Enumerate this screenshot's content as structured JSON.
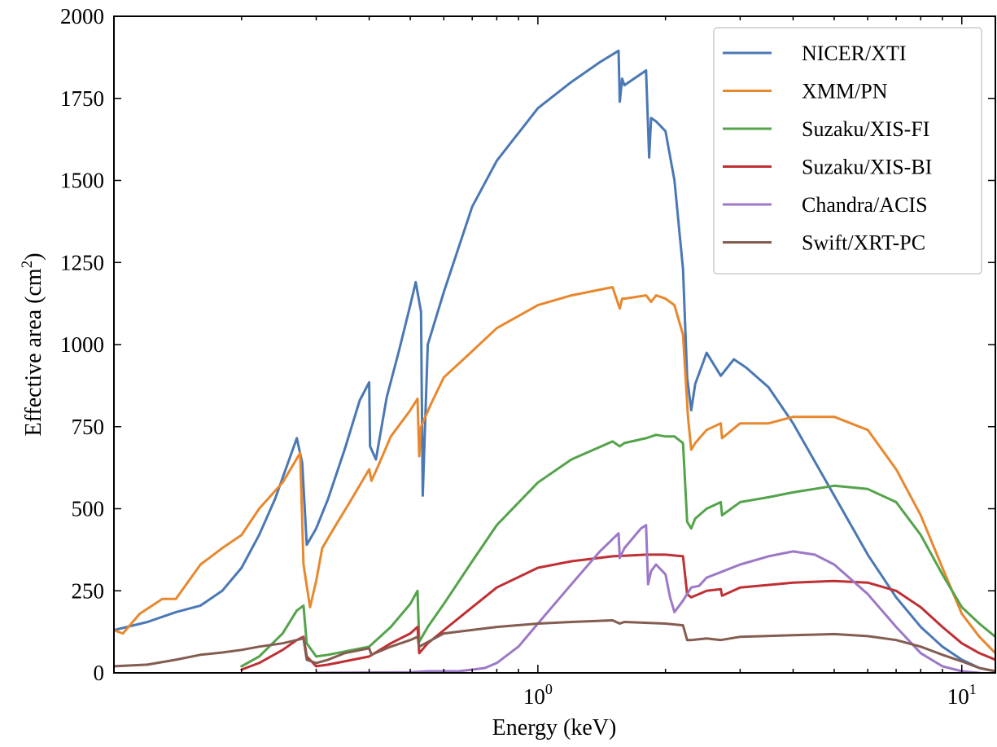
{
  "chart_data": {
    "type": "line",
    "xlabel": "Energy (keV)",
    "ylabel": "Effective area (cm",
    "ylabel_superscript": "2",
    "ylabel_close": ")",
    "xscale": "log",
    "xlim": [
      0.1,
      12
    ],
    "ylim": [
      0,
      2000
    ],
    "grid": false,
    "legend_position": "top-right",
    "y_ticks": [
      {
        "value": 0,
        "label": "0"
      },
      {
        "value": 250,
        "label": "250"
      },
      {
        "value": 500,
        "label": "500"
      },
      {
        "value": 750,
        "label": "750"
      },
      {
        "value": 1000,
        "label": "1000"
      },
      {
        "value": 1250,
        "label": "1250"
      },
      {
        "value": 1500,
        "label": "1500"
      },
      {
        "value": 1750,
        "label": "1750"
      },
      {
        "value": 2000,
        "label": "2000"
      }
    ],
    "x_ticks": [
      {
        "value": 1,
        "base": "10",
        "exp": "0"
      },
      {
        "value": 10,
        "base": "10",
        "exp": "1"
      }
    ],
    "series": [
      {
        "name": "NICER/XTI",
        "color": "#4a78b4",
        "x": [
          0.1,
          0.12,
          0.14,
          0.16,
          0.18,
          0.2,
          0.22,
          0.24,
          0.27,
          0.278,
          0.285,
          0.3,
          0.32,
          0.35,
          0.38,
          0.4,
          0.402,
          0.415,
          0.44,
          0.47,
          0.5,
          0.515,
          0.53,
          0.535,
          0.55,
          0.6,
          0.7,
          0.8,
          1.0,
          1.2,
          1.4,
          1.55,
          1.56,
          1.58,
          1.6,
          1.8,
          1.83,
          1.85,
          1.9,
          2.0,
          2.1,
          2.2,
          2.25,
          2.3,
          2.35,
          2.5,
          2.7,
          2.9,
          3.1,
          3.5,
          4.0,
          5.0,
          6.0,
          7.0,
          8.0,
          9.0,
          10.0,
          11.0,
          12.0
        ],
        "y": [
          130,
          155,
          185,
          205,
          250,
          320,
          420,
          530,
          715,
          640,
          390,
          440,
          530,
          680,
          830,
          885,
          690,
          650,
          840,
          980,
          1120,
          1190,
          1100,
          540,
          1000,
          1160,
          1420,
          1560,
          1720,
          1800,
          1860,
          1895,
          1740,
          1810,
          1790,
          1835,
          1570,
          1690,
          1680,
          1650,
          1500,
          1230,
          900,
          800,
          880,
          975,
          905,
          955,
          930,
          870,
          760,
          540,
          360,
          230,
          140,
          80,
          40,
          15,
          5
        ]
      },
      {
        "name": "XMM/PN",
        "color": "#e8882e",
        "x": [
          0.1,
          0.105,
          0.115,
          0.13,
          0.14,
          0.16,
          0.18,
          0.2,
          0.22,
          0.25,
          0.275,
          0.28,
          0.29,
          0.3,
          0.31,
          0.33,
          0.36,
          0.4,
          0.405,
          0.42,
          0.45,
          0.5,
          0.52,
          0.525,
          0.53,
          0.56,
          0.6,
          0.7,
          0.8,
          1.0,
          1.2,
          1.5,
          1.56,
          1.58,
          1.6,
          1.8,
          1.85,
          1.9,
          2.0,
          2.1,
          2.2,
          2.26,
          2.3,
          2.35,
          2.5,
          2.7,
          2.72,
          3.0,
          3.5,
          4.0,
          5.0,
          6.0,
          7.0,
          8.0,
          9.0,
          10.0,
          11.0,
          12.0
        ],
        "y": [
          130,
          120,
          180,
          225,
          225,
          330,
          380,
          420,
          500,
          580,
          670,
          330,
          200,
          280,
          380,
          440,
          520,
          620,
          585,
          630,
          720,
          800,
          835,
          660,
          750,
          820,
          900,
          980,
          1050,
          1120,
          1150,
          1175,
          1110,
          1140,
          1140,
          1150,
          1130,
          1150,
          1140,
          1120,
          1030,
          780,
          680,
          700,
          740,
          760,
          715,
          760,
          760,
          780,
          780,
          740,
          620,
          480,
          320,
          180,
          110,
          60
        ]
      },
      {
        "name": "Suzaku/XIS-FI",
        "color": "#54a34b",
        "x": [
          0.2,
          0.22,
          0.25,
          0.27,
          0.28,
          0.285,
          0.3,
          0.32,
          0.35,
          0.4,
          0.45,
          0.5,
          0.52,
          0.525,
          0.55,
          0.6,
          0.7,
          0.8,
          1.0,
          1.2,
          1.5,
          1.56,
          1.6,
          1.8,
          1.9,
          2.0,
          2.1,
          2.2,
          2.25,
          2.3,
          2.35,
          2.5,
          2.7,
          2.72,
          3.0,
          3.5,
          4.0,
          5.0,
          6.0,
          7.0,
          8.0,
          9.0,
          10.0,
          11.0,
          12.0
        ],
        "y": [
          20,
          50,
          120,
          190,
          205,
          90,
          50,
          55,
          65,
          80,
          140,
          210,
          250,
          95,
          140,
          210,
          340,
          450,
          580,
          650,
          705,
          690,
          700,
          715,
          725,
          720,
          720,
          700,
          460,
          440,
          470,
          500,
          520,
          480,
          520,
          535,
          550,
          570,
          560,
          520,
          420,
          300,
          200,
          150,
          110
        ]
      },
      {
        "name": "Suzaku/XIS-BI",
        "color": "#bf3034",
        "x": [
          0.2,
          0.22,
          0.25,
          0.27,
          0.28,
          0.285,
          0.3,
          0.32,
          0.35,
          0.4,
          0.45,
          0.5,
          0.52,
          0.525,
          0.55,
          0.6,
          0.7,
          0.8,
          1.0,
          1.2,
          1.5,
          1.8,
          2.0,
          2.2,
          2.25,
          2.3,
          2.4,
          2.5,
          2.7,
          2.72,
          3.0,
          4.0,
          5.0,
          6.0,
          7.0,
          8.0,
          9.0,
          10.0,
          11.0,
          12.0
        ],
        "y": [
          10,
          30,
          70,
          100,
          110,
          50,
          20,
          25,
          35,
          50,
          90,
          120,
          140,
          60,
          90,
          130,
          200,
          260,
          320,
          340,
          355,
          360,
          360,
          355,
          240,
          230,
          240,
          250,
          255,
          235,
          260,
          275,
          280,
          275,
          250,
          200,
          140,
          90,
          60,
          40
        ]
      },
      {
        "name": "Chandra/ACIS",
        "color": "#9c78c6",
        "x": [
          0.3,
          0.5,
          0.55,
          0.6,
          0.65,
          0.7,
          0.75,
          0.8,
          0.9,
          1.0,
          1.2,
          1.4,
          1.55,
          1.56,
          1.6,
          1.75,
          1.8,
          1.82,
          1.85,
          1.9,
          2.0,
          2.05,
          2.1,
          2.2,
          2.3,
          2.4,
          2.5,
          3.0,
          3.5,
          4.0,
          4.5,
          5.0,
          6.0,
          7.0,
          8.0,
          9.0,
          10.0,
          11.0
        ],
        "y": [
          0,
          2,
          5,
          5,
          5,
          10,
          15,
          30,
          80,
          150,
          270,
          370,
          425,
          350,
          380,
          440,
          450,
          270,
          310,
          330,
          300,
          230,
          185,
          220,
          260,
          265,
          290,
          330,
          355,
          370,
          360,
          330,
          240,
          140,
          60,
          20,
          5,
          0
        ]
      },
      {
        "name": "Swift/XRT-PC",
        "color": "#845c50",
        "x": [
          0.1,
          0.12,
          0.14,
          0.16,
          0.18,
          0.2,
          0.22,
          0.25,
          0.27,
          0.28,
          0.285,
          0.3,
          0.32,
          0.35,
          0.4,
          0.405,
          0.45,
          0.5,
          0.52,
          0.525,
          0.6,
          0.8,
          1.0,
          1.2,
          1.5,
          1.56,
          1.6,
          2.0,
          2.2,
          2.25,
          2.3,
          2.5,
          2.7,
          3.0,
          4.0,
          5.0,
          6.0,
          7.0,
          8.0,
          9.0,
          10.0,
          11.0,
          12.0
        ],
        "y": [
          20,
          25,
          40,
          55,
          62,
          70,
          80,
          90,
          100,
          105,
          40,
          30,
          40,
          60,
          75,
          55,
          80,
          100,
          110,
          80,
          120,
          140,
          150,
          155,
          160,
          150,
          155,
          150,
          145,
          100,
          100,
          105,
          100,
          110,
          115,
          118,
          112,
          100,
          80,
          55,
          35,
          15,
          5
        ]
      }
    ]
  }
}
